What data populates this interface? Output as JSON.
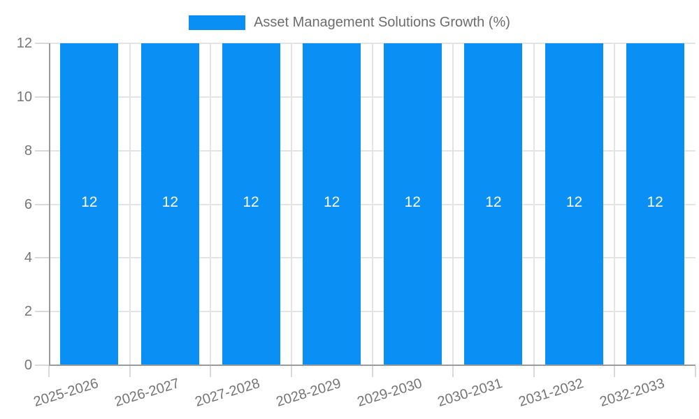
{
  "legend": {
    "label": "Asset Management Solutions Growth (%)",
    "swatch_color": "#0a8ff5"
  },
  "chart_data": {
    "type": "bar",
    "title": "Asset Management Solutions Growth (%)",
    "categories": [
      "2025-2026",
      "2026-2027",
      "2027-2028",
      "2028-2029",
      "2029-2030",
      "2030-2031",
      "2031-2032",
      "2032-2033"
    ],
    "series": [
      {
        "name": "Asset Management Solutions Growth (%)",
        "values": [
          12,
          12,
          12,
          12,
          12,
          12,
          12,
          12
        ]
      }
    ],
    "bar_labels": [
      "12",
      "12",
      "12",
      "12",
      "12",
      "12",
      "12",
      "12"
    ],
    "xlabel": "",
    "ylabel": "",
    "ylim": [
      0,
      12
    ],
    "yticks": [
      0,
      2,
      4,
      6,
      8,
      10,
      12
    ],
    "grid": true,
    "legend_position": "top",
    "colors": {
      "bar": "#0a8ff5",
      "gridline": "#e4e4e4",
      "tick": "#d9d9d9",
      "axis": "#9b9b9b",
      "tick_label": "#757575",
      "bar_label": "#ffffff",
      "legend_text": "#6d6d6d"
    }
  }
}
